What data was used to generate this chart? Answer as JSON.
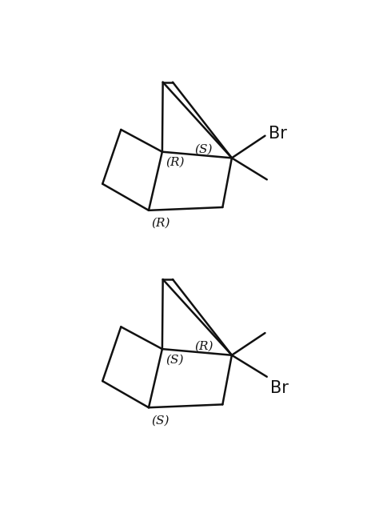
{
  "background_color": "#ffffff",
  "line_color": "#111111",
  "line_width": 1.8,
  "figsize": [
    4.74,
    6.31
  ],
  "dpi": 100,
  "structures": [
    {
      "config_bridge": "(R)",
      "config_right": "(S)",
      "config_bottom": "(R)",
      "br_up": true
    },
    {
      "config_bridge": "(S)",
      "config_right": "(R)",
      "config_bottom": "(S)",
      "br_up": false
    }
  ]
}
